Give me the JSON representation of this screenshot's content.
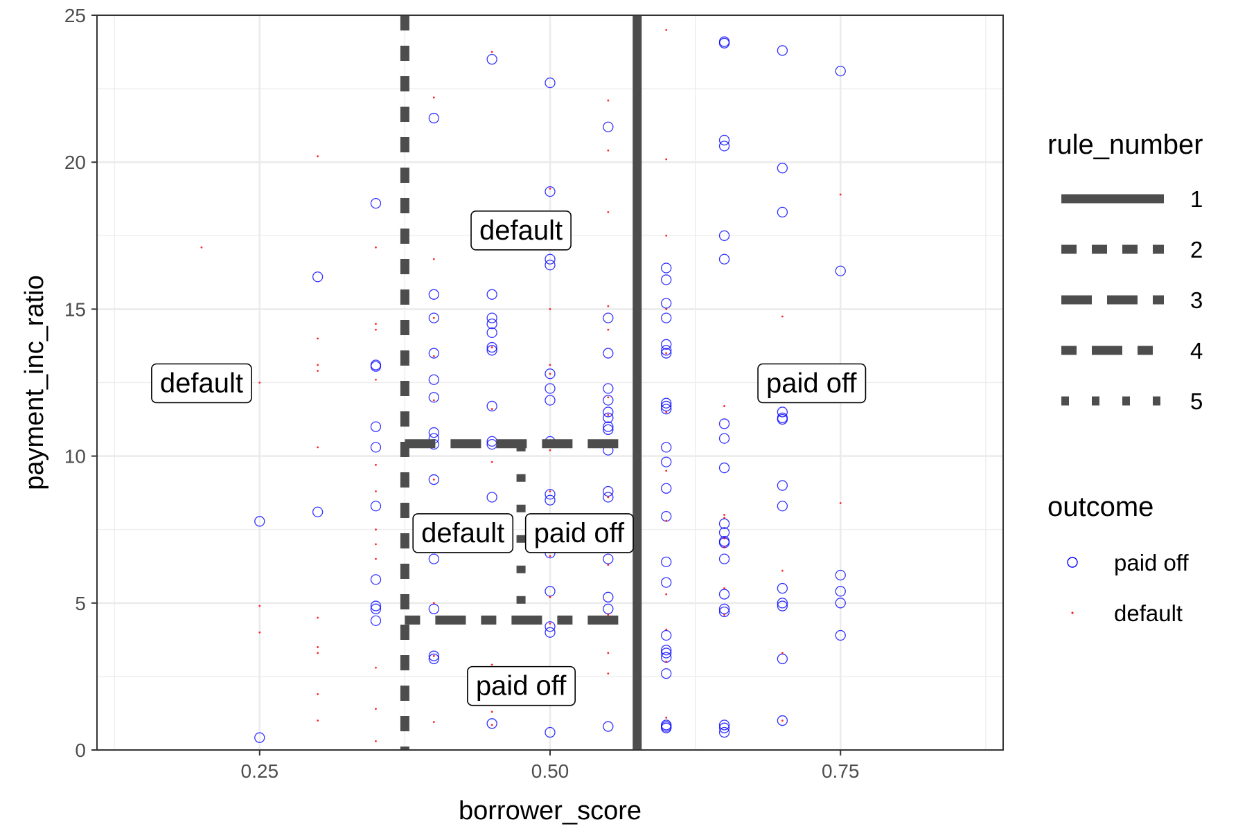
{
  "chart_data": {
    "type": "scatter",
    "xlabel": "borrower_score",
    "ylabel": "payment_inc_ratio",
    "xlim": [
      0.11,
      0.89
    ],
    "ylim": [
      0,
      25
    ],
    "x_ticks": [
      {
        "value": 0.25,
        "label": "0.25"
      },
      {
        "value": 0.5,
        "label": "0.50"
      },
      {
        "value": 0.75,
        "label": "0.75"
      }
    ],
    "y_ticks": [
      {
        "value": 0,
        "label": "0"
      },
      {
        "value": 5,
        "label": "5"
      },
      {
        "value": 10,
        "label": "10"
      },
      {
        "value": 15,
        "label": "15"
      },
      {
        "value": 20,
        "label": "20"
      },
      {
        "value": 25,
        "label": "25"
      }
    ],
    "grid": true,
    "legend_position": "right",
    "rule_legend": {
      "title": "rule_number",
      "items": [
        {
          "label": "1",
          "dash": "solid"
        },
        {
          "label": "2",
          "dash": "dashed"
        },
        {
          "label": "3",
          "dash": "longdash"
        },
        {
          "label": "4",
          "dash": "twodash"
        },
        {
          "label": "5",
          "dash": "dotted"
        }
      ]
    },
    "outcome_legend": {
      "title": "outcome",
      "items": [
        {
          "label": "paid off",
          "color": "#0000ff",
          "shape": "open-circle"
        },
        {
          "label": "default",
          "color": "#ff0000",
          "shape": "dot"
        }
      ]
    },
    "rules": [
      {
        "rule": "1",
        "orientation": "vertical",
        "x": 0.575,
        "y_range": [
          0,
          25
        ]
      },
      {
        "rule": "2",
        "orientation": "vertical",
        "x": 0.375,
        "y_range": [
          0,
          25
        ]
      },
      {
        "rule": "3",
        "orientation": "horizontal",
        "y": 10.42,
        "x_range": [
          0.375,
          0.575
        ]
      },
      {
        "rule": "4",
        "orientation": "horizontal",
        "y": 4.42,
        "x_range": [
          0.375,
          0.575
        ]
      },
      {
        "rule": "5",
        "orientation": "vertical",
        "x": 0.475,
        "y_range": [
          4.42,
          10.42
        ]
      }
    ],
    "region_labels": [
      {
        "text": "default",
        "x": 0.2,
        "y": 12.5
      },
      {
        "text": "paid off",
        "x": 0.725,
        "y": 12.5
      },
      {
        "text": "default",
        "x": 0.475,
        "y": 17.7
      },
      {
        "text": "paid off",
        "x": 0.475,
        "y": 2.2
      },
      {
        "text": "default",
        "x": 0.425,
        "y": 7.4
      },
      {
        "text": "paid off",
        "x": 0.525,
        "y": 7.4
      }
    ],
    "series": [
      {
        "name": "paid off",
        "color": "#0000ff",
        "points": [
          [
            0.25,
            7.78
          ],
          [
            0.25,
            0.42
          ],
          [
            0.3,
            16.1
          ],
          [
            0.3,
            8.1
          ],
          [
            0.35,
            18.6
          ],
          [
            0.35,
            13.1
          ],
          [
            0.35,
            13.05
          ],
          [
            0.35,
            11.0
          ],
          [
            0.35,
            10.3
          ],
          [
            0.35,
            8.3
          ],
          [
            0.35,
            5.8
          ],
          [
            0.35,
            4.9
          ],
          [
            0.35,
            4.8
          ],
          [
            0.35,
            4.4
          ],
          [
            0.4,
            21.5
          ],
          [
            0.4,
            15.5
          ],
          [
            0.4,
            14.7
          ],
          [
            0.4,
            13.5
          ],
          [
            0.4,
            12.6
          ],
          [
            0.4,
            12.0
          ],
          [
            0.4,
            10.8
          ],
          [
            0.4,
            10.6
          ],
          [
            0.4,
            10.4
          ],
          [
            0.4,
            9.2
          ],
          [
            0.4,
            6.5
          ],
          [
            0.4,
            4.8
          ],
          [
            0.4,
            3.2
          ],
          [
            0.4,
            3.1
          ],
          [
            0.45,
            23.5
          ],
          [
            0.45,
            15.5
          ],
          [
            0.45,
            14.7
          ],
          [
            0.45,
            14.5
          ],
          [
            0.45,
            14.2
          ],
          [
            0.45,
            13.7
          ],
          [
            0.45,
            13.6
          ],
          [
            0.45,
            11.7
          ],
          [
            0.45,
            10.5
          ],
          [
            0.45,
            10.4
          ],
          [
            0.45,
            8.6
          ],
          [
            0.45,
            0.9
          ],
          [
            0.5,
            22.7
          ],
          [
            0.5,
            19.0
          ],
          [
            0.5,
            16.7
          ],
          [
            0.5,
            16.5
          ],
          [
            0.5,
            12.8
          ],
          [
            0.5,
            12.3
          ],
          [
            0.5,
            11.9
          ],
          [
            0.5,
            10.5
          ],
          [
            0.5,
            8.7
          ],
          [
            0.5,
            8.5
          ],
          [
            0.5,
            6.7
          ],
          [
            0.5,
            5.4
          ],
          [
            0.5,
            4.2
          ],
          [
            0.5,
            4.0
          ],
          [
            0.5,
            0.6
          ],
          [
            0.55,
            21.2
          ],
          [
            0.55,
            14.7
          ],
          [
            0.55,
            13.5
          ],
          [
            0.55,
            12.3
          ],
          [
            0.55,
            11.9
          ],
          [
            0.55,
            11.5
          ],
          [
            0.55,
            11.3
          ],
          [
            0.55,
            11.0
          ],
          [
            0.55,
            10.9
          ],
          [
            0.55,
            10.2
          ],
          [
            0.55,
            8.8
          ],
          [
            0.55,
            8.6
          ],
          [
            0.55,
            6.5
          ],
          [
            0.55,
            5.2
          ],
          [
            0.55,
            4.8
          ],
          [
            0.55,
            0.8
          ],
          [
            0.6,
            16.4
          ],
          [
            0.6,
            16.0
          ],
          [
            0.6,
            15.2
          ],
          [
            0.6,
            14.7
          ],
          [
            0.6,
            13.8
          ],
          [
            0.6,
            13.6
          ],
          [
            0.6,
            13.5
          ],
          [
            0.6,
            11.8
          ],
          [
            0.6,
            11.7
          ],
          [
            0.6,
            11.6
          ],
          [
            0.6,
            10.3
          ],
          [
            0.6,
            9.8
          ],
          [
            0.6,
            8.9
          ],
          [
            0.6,
            7.95
          ],
          [
            0.6,
            6.4
          ],
          [
            0.6,
            5.7
          ],
          [
            0.6,
            3.9
          ],
          [
            0.6,
            3.4
          ],
          [
            0.6,
            3.3
          ],
          [
            0.6,
            3.15
          ],
          [
            0.6,
            2.6
          ],
          [
            0.6,
            0.85
          ],
          [
            0.6,
            0.8
          ],
          [
            0.6,
            0.75
          ],
          [
            0.65,
            24.1
          ],
          [
            0.65,
            24.05
          ],
          [
            0.65,
            20.75
          ],
          [
            0.65,
            20.55
          ],
          [
            0.65,
            17.5
          ],
          [
            0.65,
            16.7
          ],
          [
            0.65,
            11.1
          ],
          [
            0.65,
            10.6
          ],
          [
            0.65,
            9.6
          ],
          [
            0.65,
            7.7
          ],
          [
            0.65,
            7.4
          ],
          [
            0.65,
            7.1
          ],
          [
            0.65,
            7.05
          ],
          [
            0.65,
            6.5
          ],
          [
            0.65,
            5.3
          ],
          [
            0.65,
            4.8
          ],
          [
            0.65,
            4.7
          ],
          [
            0.65,
            0.85
          ],
          [
            0.65,
            0.75
          ],
          [
            0.65,
            0.6
          ],
          [
            0.7,
            23.8
          ],
          [
            0.7,
            19.8
          ],
          [
            0.7,
            18.3
          ],
          [
            0.7,
            11.5
          ],
          [
            0.7,
            11.3
          ],
          [
            0.7,
            11.25
          ],
          [
            0.7,
            9.0
          ],
          [
            0.7,
            8.3
          ],
          [
            0.7,
            5.5
          ],
          [
            0.7,
            5.0
          ],
          [
            0.7,
            4.9
          ],
          [
            0.7,
            3.1
          ],
          [
            0.7,
            1.0
          ],
          [
            0.75,
            23.1
          ],
          [
            0.75,
            16.3
          ],
          [
            0.75,
            5.95
          ],
          [
            0.75,
            5.4
          ],
          [
            0.75,
            5.0
          ],
          [
            0.75,
            3.9
          ]
        ]
      },
      {
        "name": "default",
        "color": "#ff0000",
        "points": [
          [
            0.2,
            17.1
          ],
          [
            0.25,
            12.5
          ],
          [
            0.25,
            4.9
          ],
          [
            0.25,
            4.0
          ],
          [
            0.3,
            20.2
          ],
          [
            0.3,
            14.0
          ],
          [
            0.3,
            13.1
          ],
          [
            0.3,
            12.9
          ],
          [
            0.3,
            10.3
          ],
          [
            0.3,
            4.5
          ],
          [
            0.3,
            3.5
          ],
          [
            0.3,
            3.3
          ],
          [
            0.3,
            1.9
          ],
          [
            0.3,
            1.0
          ],
          [
            0.35,
            17.1
          ],
          [
            0.35,
            14.5
          ],
          [
            0.35,
            14.3
          ],
          [
            0.35,
            12.6
          ],
          [
            0.35,
            9.7
          ],
          [
            0.35,
            8.8
          ],
          [
            0.35,
            7.5
          ],
          [
            0.35,
            7.0
          ],
          [
            0.35,
            6.5
          ],
          [
            0.35,
            2.8
          ],
          [
            0.35,
            1.4
          ],
          [
            0.35,
            0.3
          ],
          [
            0.4,
            22.2
          ],
          [
            0.4,
            16.7
          ],
          [
            0.4,
            14.7
          ],
          [
            0.4,
            13.4
          ],
          [
            0.4,
            11.9
          ],
          [
            0.4,
            9.2
          ],
          [
            0.4,
            5.0
          ],
          [
            0.4,
            3.2
          ],
          [
            0.4,
            0.95
          ],
          [
            0.45,
            23.75
          ],
          [
            0.45,
            13.7
          ],
          [
            0.45,
            11.6
          ],
          [
            0.45,
            9.8
          ],
          [
            0.45,
            2.9
          ],
          [
            0.45,
            1.3
          ],
          [
            0.45,
            0.85
          ],
          [
            0.5,
            19.1
          ],
          [
            0.5,
            15.0
          ],
          [
            0.5,
            13.1
          ],
          [
            0.5,
            12.8
          ],
          [
            0.5,
            10.2
          ],
          [
            0.5,
            8.8
          ],
          [
            0.5,
            6.6
          ],
          [
            0.5,
            5.2
          ],
          [
            0.5,
            4.3
          ],
          [
            0.5,
            1.7
          ],
          [
            0.55,
            22.1
          ],
          [
            0.55,
            20.4
          ],
          [
            0.55,
            18.3
          ],
          [
            0.55,
            15.1
          ],
          [
            0.55,
            14.3
          ],
          [
            0.55,
            12.0
          ],
          [
            0.55,
            11.4
          ],
          [
            0.55,
            8.6
          ],
          [
            0.55,
            6.3
          ],
          [
            0.55,
            4.6
          ],
          [
            0.55,
            3.3
          ],
          [
            0.55,
            2.6
          ],
          [
            0.6,
            24.5
          ],
          [
            0.6,
            20.1
          ],
          [
            0.6,
            17.5
          ],
          [
            0.6,
            15.0
          ],
          [
            0.6,
            13.5
          ],
          [
            0.6,
            11.5
          ],
          [
            0.6,
            9.5
          ],
          [
            0.6,
            7.8
          ],
          [
            0.6,
            5.3
          ],
          [
            0.6,
            4.1
          ],
          [
            0.6,
            3.0
          ],
          [
            0.6,
            1.1
          ],
          [
            0.65,
            11.7
          ],
          [
            0.65,
            8.0
          ],
          [
            0.65,
            7.9
          ],
          [
            0.65,
            7.2
          ],
          [
            0.65,
            6.9
          ],
          [
            0.65,
            5.5
          ],
          [
            0.65,
            4.6
          ],
          [
            0.7,
            14.75
          ],
          [
            0.7,
            12.5
          ],
          [
            0.7,
            6.1
          ],
          [
            0.7,
            3.3
          ],
          [
            0.7,
            1.0
          ],
          [
            0.75,
            18.9
          ],
          [
            0.75,
            8.4
          ]
        ]
      }
    ]
  }
}
